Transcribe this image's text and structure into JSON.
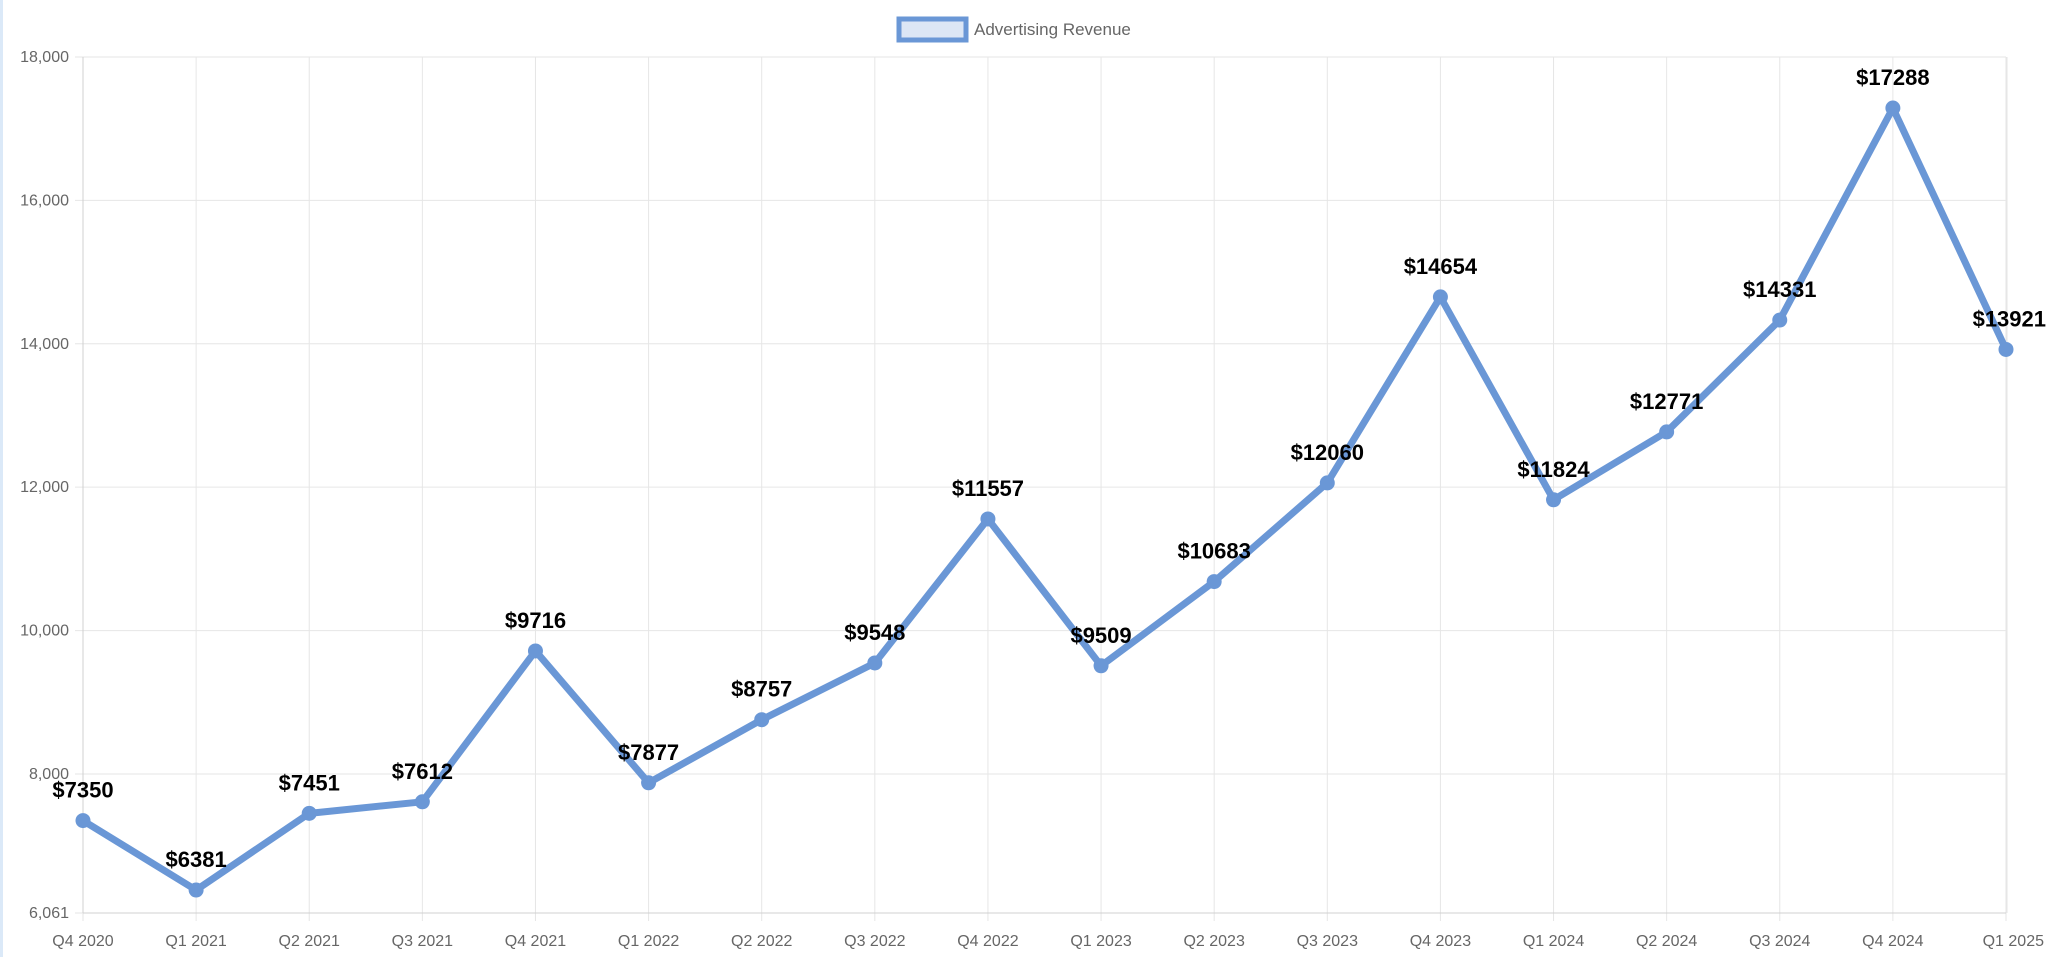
{
  "chart_data": {
    "type": "line",
    "title": "",
    "xlabel": "",
    "ylabel": "",
    "categories": [
      "Q4 2020",
      "Q1 2021",
      "Q2 2021",
      "Q3 2021",
      "Q4 2021",
      "Q1 2022",
      "Q2 2022",
      "Q3 2022",
      "Q4 2022",
      "Q1 2023",
      "Q2 2023",
      "Q3 2023",
      "Q4 2023",
      "Q1 2024",
      "Q2 2024",
      "Q3 2024",
      "Q4 2024",
      "Q1 2025"
    ],
    "series": [
      {
        "name": "Advertising Revenue",
        "values": [
          7350,
          6381,
          7451,
          7612,
          9716,
          7877,
          8757,
          9548,
          11557,
          9509,
          10683,
          12060,
          14654,
          11824,
          12771,
          14331,
          17288,
          13921
        ],
        "data_labels": [
          "$7350",
          "$6381",
          "$7451",
          "$7612",
          "$9716",
          "$7877",
          "$8757",
          "$9548",
          "$11557",
          "$9509",
          "$10683",
          "$12060",
          "$14654",
          "$11824",
          "$12771",
          "$14331",
          "$17288",
          "$13921"
        ],
        "color": "#6a97d6",
        "legend_fill": "#dce6f5"
      }
    ],
    "ylim": [
      6061,
      18000
    ],
    "y_ticks": [
      6061,
      8000,
      10000,
      12000,
      14000,
      16000,
      18000
    ],
    "y_tick_labels": [
      "6,061",
      "8,000",
      "10,000",
      "12,000",
      "14,000",
      "16,000",
      "18,000"
    ],
    "grid": true,
    "grid_color": "#e6e6e6",
    "legend": "top-center"
  }
}
